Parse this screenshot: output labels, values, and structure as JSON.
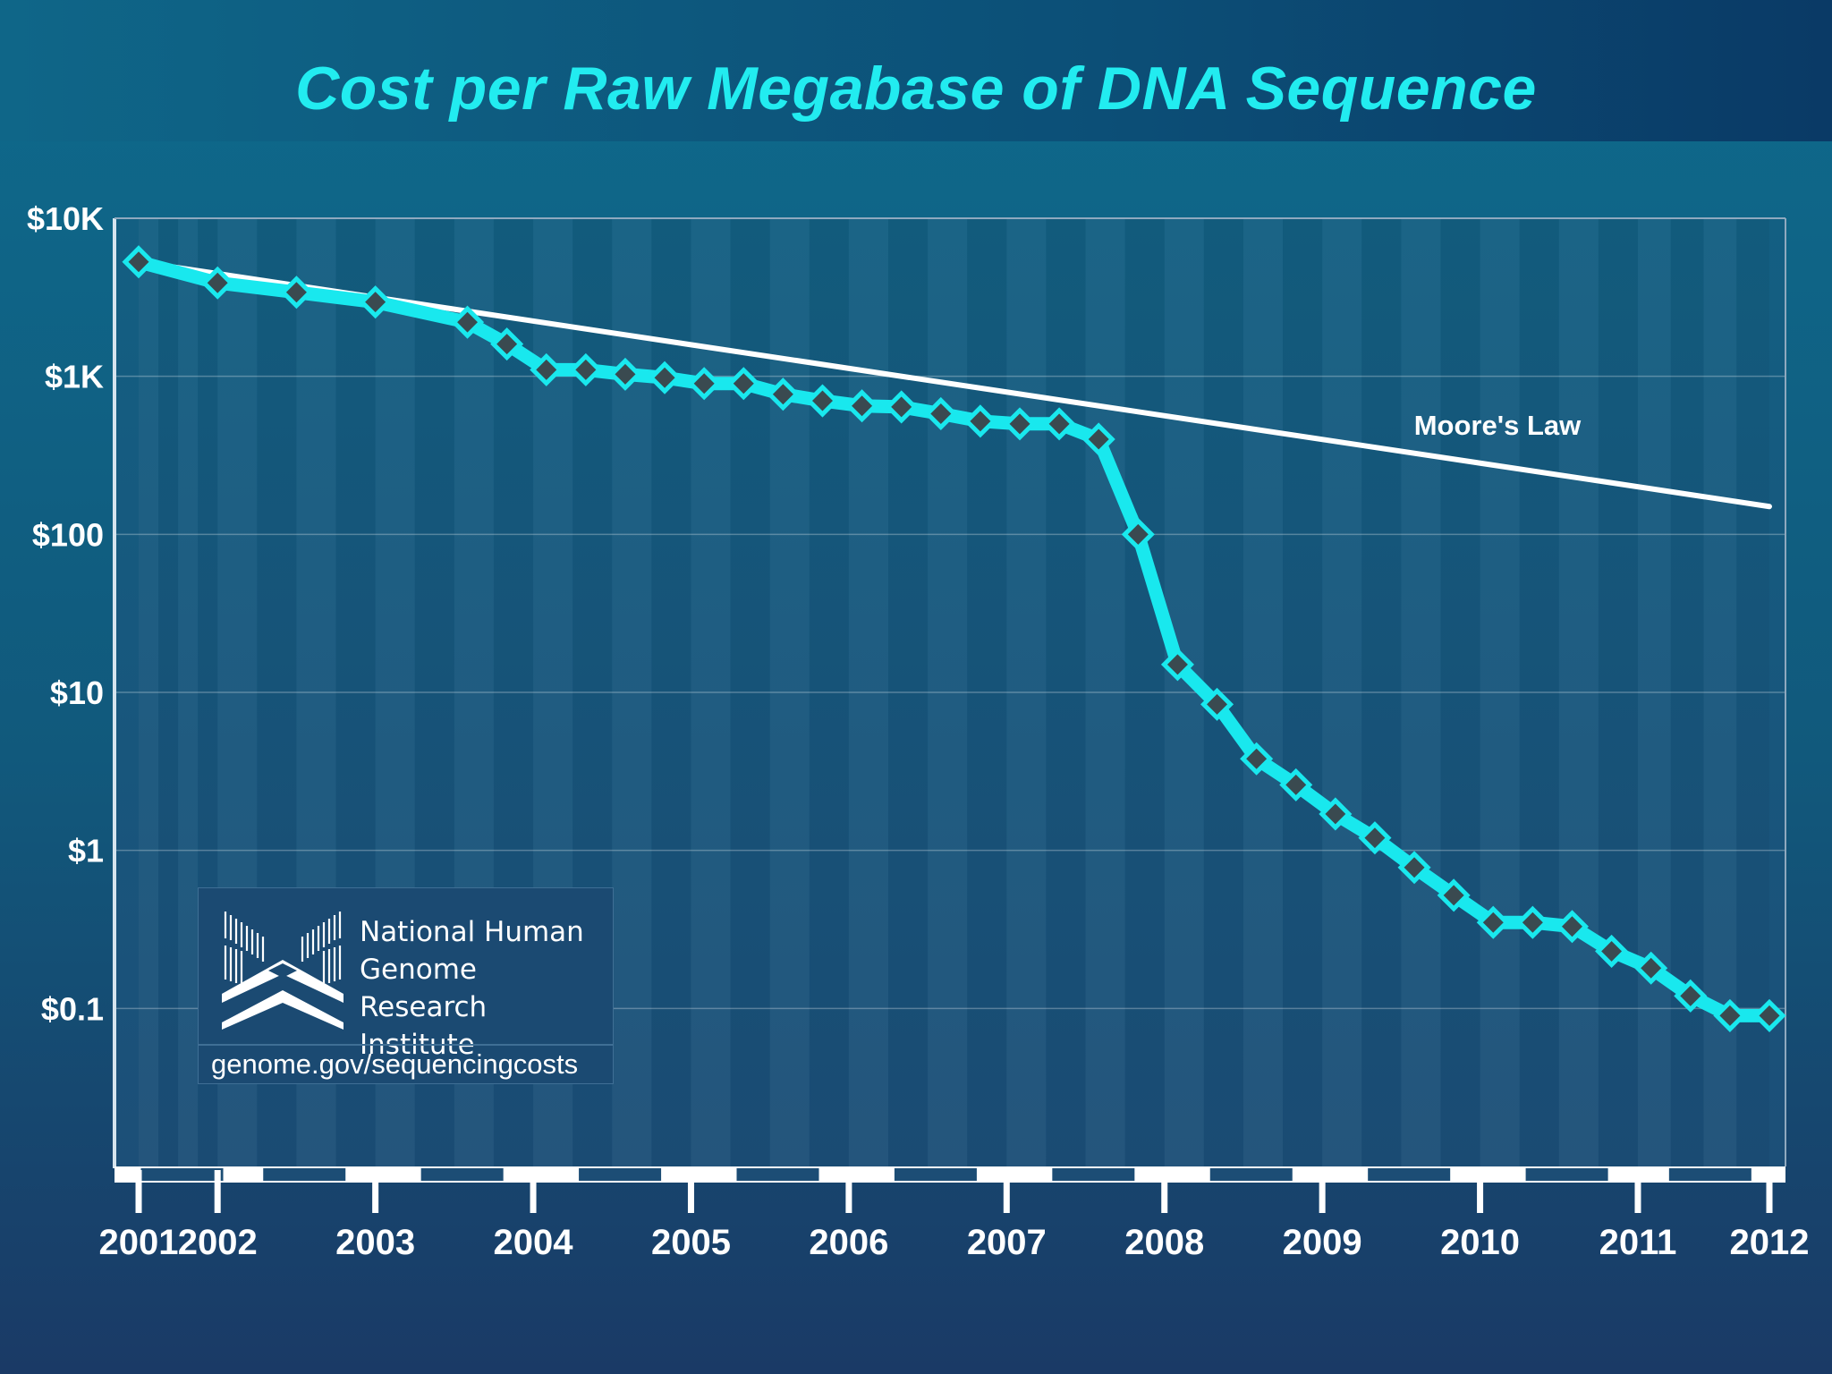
{
  "chart_data": {
    "type": "line",
    "title": "Cost per Raw Megabase of DNA Sequence",
    "xlabel": "",
    "ylabel": "",
    "yscale": "log",
    "ylim": [
      0.01,
      10000
    ],
    "xlim": [
      "2001-09",
      "2012-01"
    ],
    "y_tick_labels": [
      "$10K",
      "$1K",
      "$100",
      "$10",
      "$1",
      "$0.1"
    ],
    "y_tick_values": [
      10000,
      1000,
      100,
      10,
      1,
      0.1
    ],
    "x_tick_labels": [
      "2001",
      "2002",
      "2003",
      "2004",
      "2005",
      "2006",
      "2007",
      "2008",
      "2009",
      "2010",
      "2011",
      "2012"
    ],
    "x_tick_dates": [
      "2001-09",
      "2002-03",
      "2003-03",
      "2004-03",
      "2005-03",
      "2006-03",
      "2007-03",
      "2008-03",
      "2009-03",
      "2010-03",
      "2011-03",
      "2012-01"
    ],
    "grid": true,
    "series": [
      {
        "name": "",
        "color": "#19e8ee",
        "marker": "diamond",
        "marker_color": "#3a4a50",
        "points": [
          {
            "x": "2001-09",
            "y": 5300
          },
          {
            "x": "2002-03",
            "y": 3900
          },
          {
            "x": "2002-09",
            "y": 3400
          },
          {
            "x": "2003-03",
            "y": 2950
          },
          {
            "x": "2003-10",
            "y": 2200
          },
          {
            "x": "2004-01",
            "y": 1600
          },
          {
            "x": "2004-04",
            "y": 1100
          },
          {
            "x": "2004-07",
            "y": 1100
          },
          {
            "x": "2004-10",
            "y": 1030
          },
          {
            "x": "2005-01",
            "y": 980
          },
          {
            "x": "2005-04",
            "y": 900
          },
          {
            "x": "2005-07",
            "y": 900
          },
          {
            "x": "2005-10",
            "y": 770
          },
          {
            "x": "2006-01",
            "y": 700
          },
          {
            "x": "2006-04",
            "y": 650
          },
          {
            "x": "2006-07",
            "y": 640
          },
          {
            "x": "2006-10",
            "y": 580
          },
          {
            "x": "2007-01",
            "y": 520
          },
          {
            "x": "2007-04",
            "y": 500
          },
          {
            "x": "2007-07",
            "y": 500
          },
          {
            "x": "2007-10",
            "y": 400
          },
          {
            "x": "2008-01",
            "y": 100
          },
          {
            "x": "2008-04",
            "y": 15
          },
          {
            "x": "2008-07",
            "y": 8.4
          },
          {
            "x": "2008-10",
            "y": 3.8
          },
          {
            "x": "2009-01",
            "y": 2.6
          },
          {
            "x": "2009-04",
            "y": 1.7
          },
          {
            "x": "2009-07",
            "y": 1.2
          },
          {
            "x": "2009-10",
            "y": 0.78
          },
          {
            "x": "2010-01",
            "y": 0.52
          },
          {
            "x": "2010-04",
            "y": 0.35
          },
          {
            "x": "2010-07",
            "y": 0.35
          },
          {
            "x": "2010-10",
            "y": 0.33
          },
          {
            "x": "2011-01",
            "y": 0.23
          },
          {
            "x": "2011-04",
            "y": 0.18
          },
          {
            "x": "2011-07",
            "y": 0.12
          },
          {
            "x": "2011-10",
            "y": 0.09
          },
          {
            "x": "2012-01",
            "y": 0.09
          }
        ]
      },
      {
        "name": "Moore's Law",
        "color": "#ffffff",
        "marker": "none",
        "points": [
          {
            "x": "2001-09",
            "y": 5300
          },
          {
            "x": "2012-01",
            "y": 150
          }
        ]
      }
    ],
    "annotations": [
      {
        "text": "Moore's Law"
      }
    ]
  },
  "colors": {
    "title": "#22ecf0",
    "data_line": "#19e8ee",
    "moore_line": "#ffffff",
    "axis_text": "#ffffff"
  },
  "branding": {
    "logo_icon": "nhgri-logo-icon",
    "org_name_lines": [
      "National Human",
      "Genome Research",
      "Institute"
    ],
    "link": "genome.gov/sequencingcosts"
  }
}
